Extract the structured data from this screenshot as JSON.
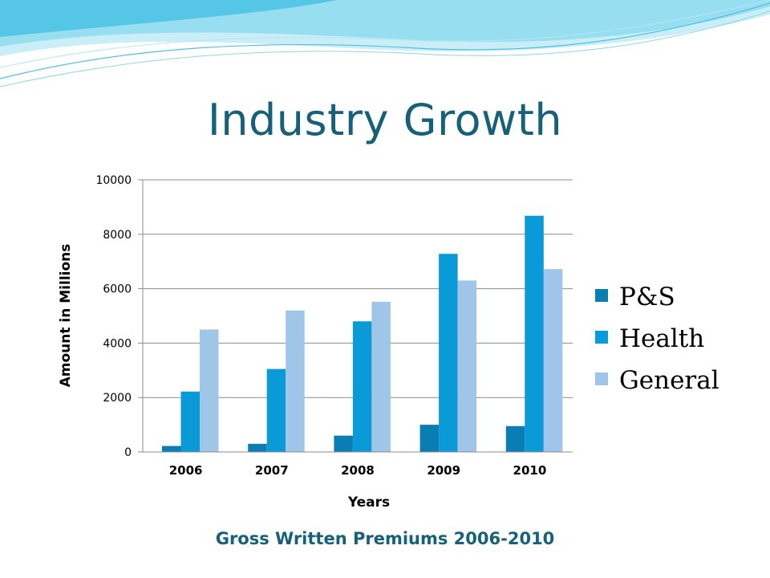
{
  "slide": {
    "title": "Industry Growth",
    "caption": "Gross Written Premiums 2006-2010"
  },
  "colors": {
    "title": "#17607a",
    "ps": "#0a7db4",
    "health": "#0a9ad8",
    "general": "#9fc6e8",
    "wave_light": "#bfe9f4",
    "wave_mid": "#7fd2ec",
    "wave_dark": "#2fb4dc"
  },
  "chart_data": {
    "type": "bar",
    "title": "",
    "xlabel": "Years",
    "ylabel": "Amount in Millions",
    "categories": [
      "2006",
      "2007",
      "2008",
      "2009",
      "2010"
    ],
    "series": [
      {
        "name": "P&S",
        "values": [
          220,
          300,
          600,
          1000,
          950
        ]
      },
      {
        "name": "Health",
        "values": [
          2220,
          3050,
          4800,
          7280,
          8680
        ]
      },
      {
        "name": "General",
        "values": [
          4500,
          5200,
          5520,
          6300,
          6720
        ]
      }
    ],
    "ylim": [
      0,
      10000
    ],
    "yticks": [
      0,
      2000,
      4000,
      6000,
      8000,
      10000
    ],
    "grid": true,
    "legend_position": "right"
  }
}
